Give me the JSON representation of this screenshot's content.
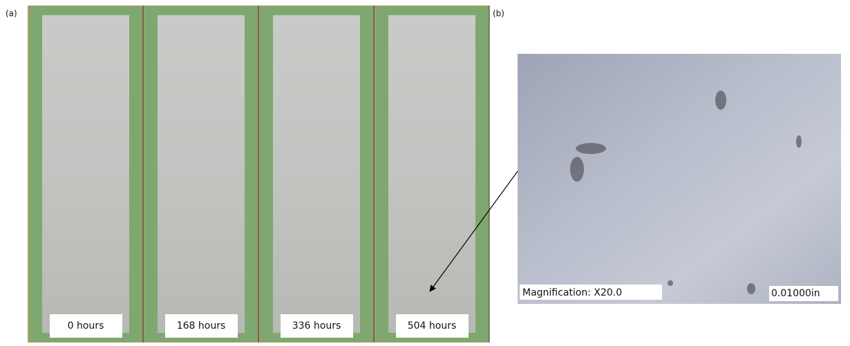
{
  "figure": {
    "panel_a": {
      "label": "(a)",
      "specimens": [
        {
          "label": "0 hours"
        },
        {
          "label": "168 hours"
        },
        {
          "label": "336 hours"
        },
        {
          "label": "504 hours"
        }
      ]
    },
    "panel_b": {
      "label": "(b)",
      "magnification": "Magnification: X20.0",
      "scale": "0.01000in"
    }
  }
}
